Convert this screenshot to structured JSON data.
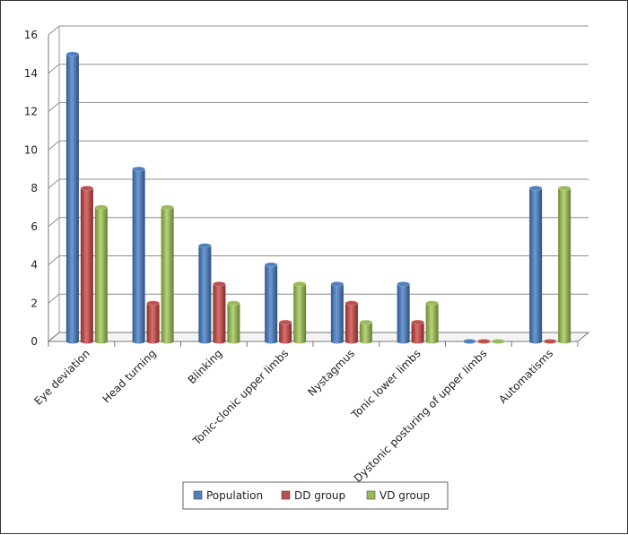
{
  "chart_data": {
    "type": "bar",
    "categories": [
      "Eye deviation",
      "Head turning",
      "Blinking",
      "Tonic-clonic upper limbs",
      "Nystagmus",
      "Tonic lower limbs",
      "Dystonic posturing of upper limbs",
      "Automatisms"
    ],
    "series": [
      {
        "name": "Population",
        "values": [
          15,
          9,
          5,
          4,
          3,
          3,
          0,
          8
        ],
        "color": "#4f81bd"
      },
      {
        "name": "DD group",
        "values": [
          8,
          2,
          3,
          1,
          2,
          1,
          0,
          0
        ],
        "color": "#c0504d"
      },
      {
        "name": "VD group",
        "values": [
          7,
          7,
          2,
          3,
          1,
          2,
          0,
          8
        ],
        "color": "#9bbb59"
      }
    ],
    "ylim": [
      0,
      16
    ],
    "yticks": [
      0,
      2,
      4,
      6,
      8,
      10,
      12,
      14,
      16
    ],
    "grid": true,
    "legend": "bottom-center"
  }
}
